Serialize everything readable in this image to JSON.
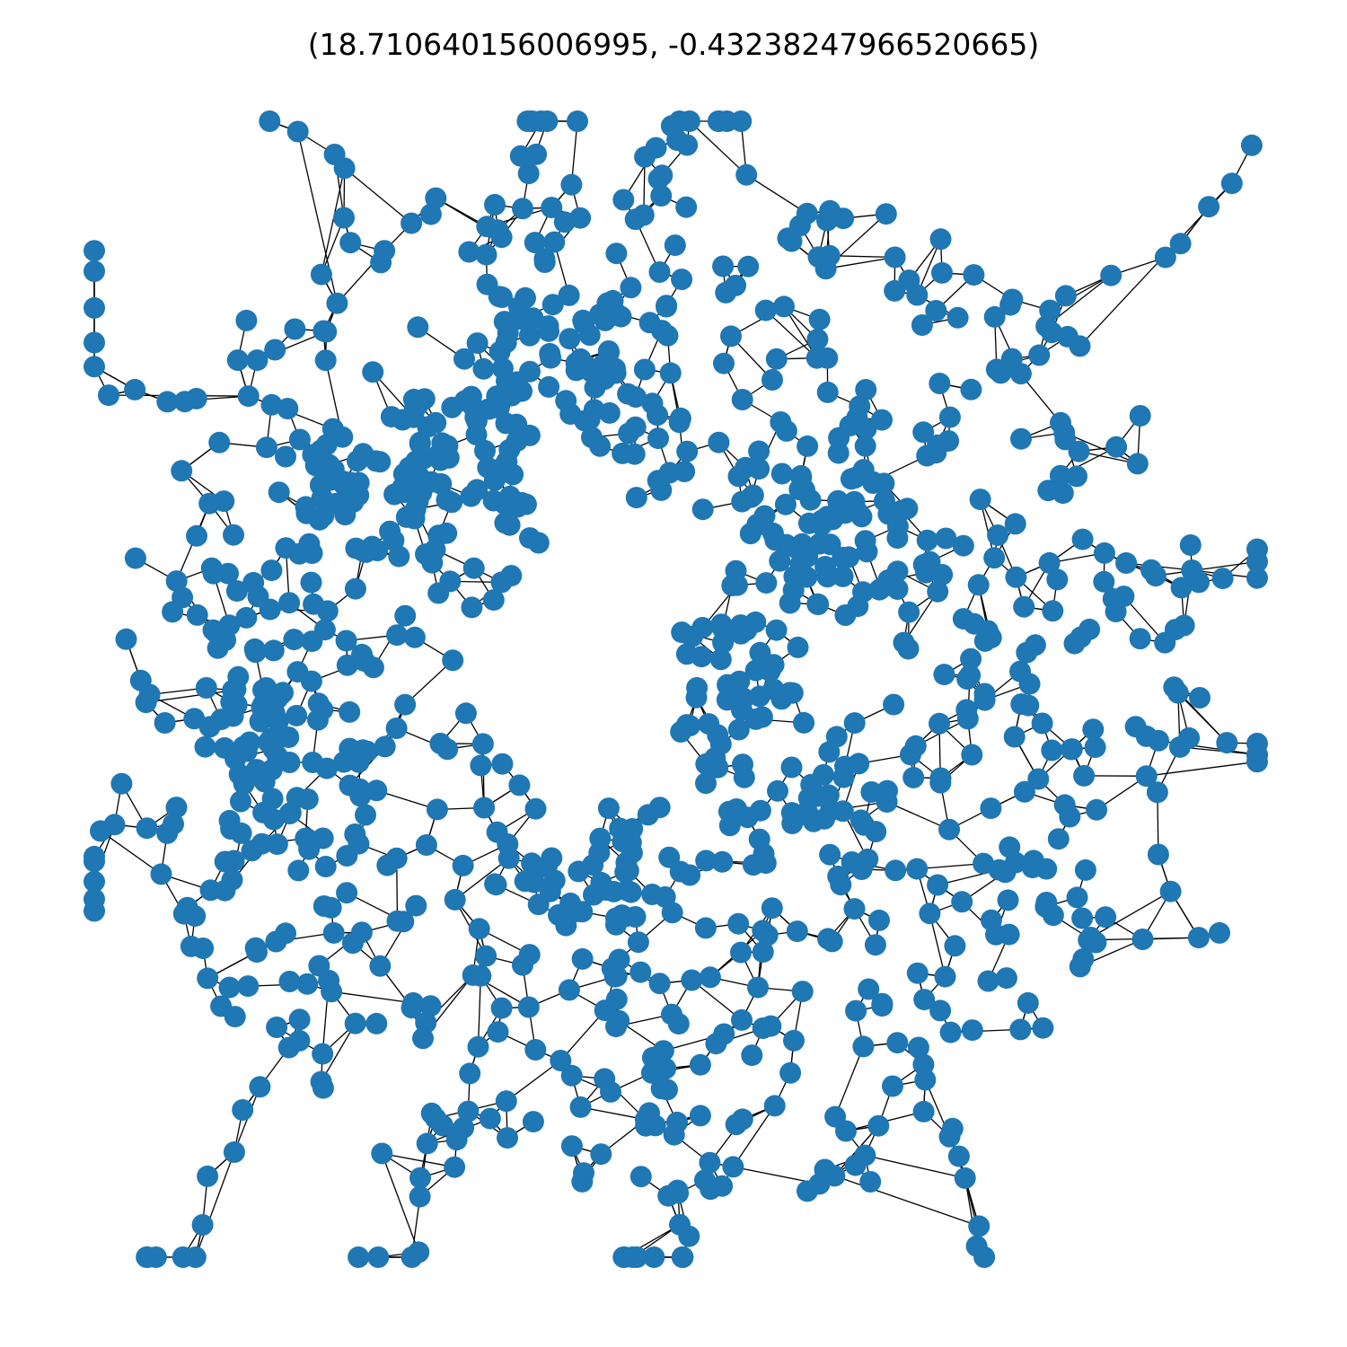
{
  "figure": {
    "title": "(18.710640156006995, -0.43238247966520665)"
  },
  "style": {
    "node_color": "#1f77b4",
    "edge_color": "#000000",
    "background": "#ffffff"
  }
}
